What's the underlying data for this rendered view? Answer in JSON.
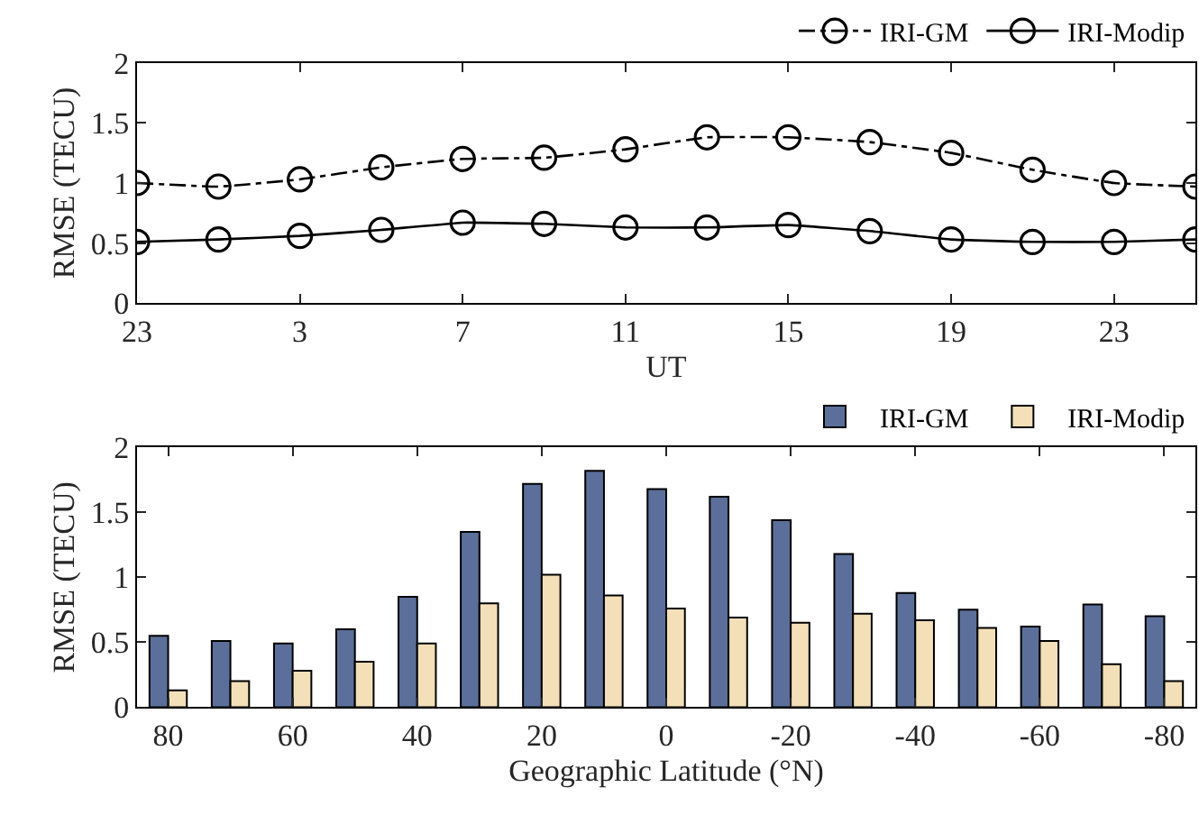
{
  "chart_data": [
    {
      "type": "line",
      "xlabel": "UT",
      "ylabel": "RMSE (TECU)",
      "categories": [
        "23",
        null,
        "3",
        null,
        "7",
        null,
        "11",
        null,
        "15",
        null,
        "19",
        null,
        "23",
        null
      ],
      "ylim": [
        0,
        2
      ],
      "yticks": [
        0,
        0.5,
        1,
        1.5,
        2
      ],
      "marker": "circle",
      "legend": "top right",
      "series": [
        {
          "name": "IRI-GM",
          "color": "#000000",
          "line_style": "dashdot",
          "values": [
            1.0,
            0.97,
            1.03,
            1.13,
            1.2,
            1.21,
            1.28,
            1.38,
            1.38,
            1.34,
            1.25,
            1.11,
            1.0,
            0.97
          ]
        },
        {
          "name": "IRI-Modip",
          "color": "#000000",
          "line_style": "solid",
          "values": [
            0.51,
            0.53,
            0.56,
            0.61,
            0.67,
            0.66,
            0.63,
            0.63,
            0.65,
            0.6,
            0.53,
            0.51,
            0.51,
            0.53
          ]
        }
      ]
    },
    {
      "type": "bar",
      "xlabel": "Geographic Latitude (°N)",
      "ylabel": "RMSE (TECU)",
      "x": [
        80,
        70,
        60,
        50,
        40,
        30,
        20,
        10,
        0,
        -10,
        -20,
        -30,
        -40,
        -50,
        -60,
        -70,
        -80
      ],
      "xlim": [
        85,
        -85
      ],
      "xticks": [
        80,
        60,
        40,
        20,
        0,
        -20,
        -40,
        -60,
        -80
      ],
      "ylim": [
        0,
        2
      ],
      "yticks": [
        0,
        0.5,
        1,
        1.5,
        2
      ],
      "legend": "top right",
      "series": [
        {
          "name": "IRI-GM",
          "color": "#5b6f9a",
          "values": [
            0.55,
            0.51,
            0.49,
            0.6,
            0.85,
            1.35,
            1.72,
            1.82,
            1.68,
            1.62,
            1.44,
            1.18,
            0.88,
            0.75,
            0.62,
            0.79,
            0.7
          ]
        },
        {
          "name": "IRI-Modip",
          "color": "#f3dfb8",
          "values": [
            0.13,
            0.2,
            0.28,
            0.35,
            0.49,
            0.8,
            1.02,
            0.86,
            0.76,
            0.69,
            0.65,
            0.72,
            0.67,
            0.61,
            0.51,
            0.33,
            0.2
          ]
        }
      ]
    }
  ]
}
